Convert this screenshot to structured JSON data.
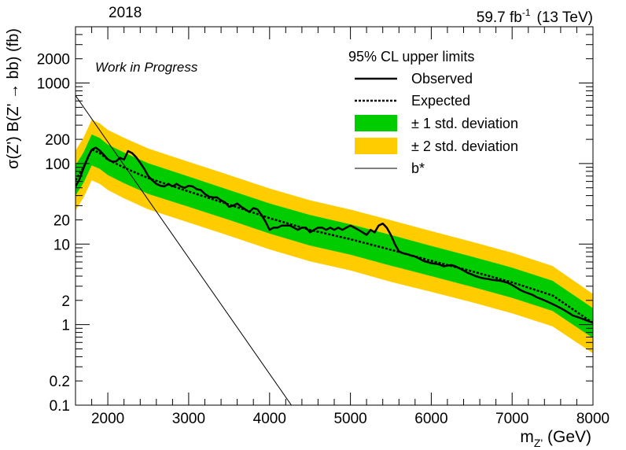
{
  "header": {
    "year": "2018",
    "lumi_value": "59.7 fb",
    "lumi_exp": "-1",
    "energy": "(13 TeV)"
  },
  "annotation": "Work in Progress",
  "chart_data": {
    "type": "line",
    "title": "",
    "xlabel_main": "m",
    "xlabel_sub": "Z'",
    "xlabel_unit": " (GeV)",
    "ylabel": "σ(Z') B(Z' → bb) (fb)",
    "xlim": [
      1600,
      8000
    ],
    "ylim": [
      0.1,
      5000
    ],
    "yscale": "log",
    "grid": false,
    "legend_placement": "top-right",
    "legend_title": "95% CL upper limits",
    "x_ticks": [
      "2000",
      "3000",
      "4000",
      "5000",
      "6000",
      "7000",
      "8000"
    ],
    "y_ticks": [
      {
        "value": 0.1,
        "label": "0.1"
      },
      {
        "value": 0.2,
        "label": "0.2"
      },
      {
        "value": 1,
        "label": "1"
      },
      {
        "value": 2,
        "label": "2"
      },
      {
        "value": 10,
        "label": "10"
      },
      {
        "value": 20,
        "label": "20"
      },
      {
        "value": 100,
        "label": "100"
      },
      {
        "value": 200,
        "label": "200"
      },
      {
        "value": 1000,
        "label": "1000"
      },
      {
        "value": 2000,
        "label": "2000"
      }
    ],
    "colors": {
      "band_2sigma": "#ffcc00",
      "band_1sigma": "#00cc00",
      "observed": "#000000",
      "expected": "#000000",
      "bstar": "#000000"
    },
    "series": [
      {
        "name": "Observed",
        "style": "solid",
        "x": [
          1600,
          1650,
          1700,
          1750,
          1800,
          1850,
          1900,
          1950,
          2000,
          2050,
          2100,
          2150,
          2200,
          2250,
          2300,
          2350,
          2400,
          2450,
          2500,
          2550,
          2600,
          2650,
          2700,
          2750,
          2800,
          2850,
          2900,
          2950,
          3000,
          3050,
          3100,
          3150,
          3200,
          3250,
          3300,
          3350,
          3400,
          3450,
          3500,
          3550,
          3600,
          3650,
          3700,
          3750,
          3800,
          3850,
          3900,
          3950,
          4000,
          4050,
          4100,
          4150,
          4200,
          4250,
          4300,
          4350,
          4400,
          4450,
          4500,
          4550,
          4600,
          4650,
          4700,
          4750,
          4800,
          4850,
          4900,
          4950,
          5000,
          5050,
          5100,
          5150,
          5200,
          5250,
          5300,
          5350,
          5400,
          5450,
          5500,
          5550,
          5600,
          5650,
          5700,
          5750,
          5800,
          5850,
          5900,
          5950,
          6000,
          6050,
          6100,
          6150,
          6200,
          6250,
          6300,
          6350,
          6400,
          6450,
          6500,
          6550,
          6600,
          6650,
          6700,
          6750,
          6800,
          6850,
          6900,
          6950,
          7000,
          7050,
          7100,
          7150,
          7200,
          7250,
          7300,
          7350,
          7400,
          7450,
          7500,
          7550,
          7600,
          7650,
          7700,
          7750,
          7800,
          7850,
          7900,
          7950,
          8000
        ],
        "y": [
          52,
          64,
          88,
          118,
          148,
          158,
          145,
          128,
          113,
          106,
          106,
          118,
          112,
          143,
          135,
          120,
          102,
          86,
          70,
          62,
          56,
          53,
          52,
          56,
          52,
          56,
          52,
          50,
          53,
          52,
          48,
          47,
          42,
          39,
          38,
          38,
          35,
          33,
          29,
          30,
          32,
          29,
          27,
          25,
          28,
          27,
          23,
          19,
          15,
          16,
          16,
          17,
          17,
          17,
          16,
          15,
          16,
          16,
          14,
          15,
          16,
          16,
          15,
          16,
          15,
          16,
          15,
          16,
          17,
          16,
          15,
          14,
          13,
          15,
          14,
          17,
          18,
          16,
          13,
          10,
          8.1,
          7.7,
          7.5,
          7.2,
          7.0,
          6.6,
          6.2,
          6.0,
          5.8,
          5.7,
          5.6,
          5.3,
          5.4,
          5.5,
          5.3,
          5.0,
          4.7,
          4.4,
          4.2,
          4.0,
          3.85,
          3.75,
          3.7,
          3.6,
          3.55,
          3.5,
          3.4,
          3.3,
          3.1,
          2.9,
          2.7,
          2.55,
          2.45,
          2.35,
          2.2,
          2.1,
          2.0,
          1.9,
          1.8,
          1.7,
          1.6,
          1.5,
          1.4,
          1.3,
          1.25,
          1.2,
          1.15,
          1.1,
          1.05
        ]
      },
      {
        "name": "Expected",
        "style": "dotted",
        "x": [
          1600,
          1700,
          1800,
          1900,
          2000,
          2200,
          2500,
          3000,
          3500,
          4000,
          4500,
          5000,
          5500,
          6000,
          6500,
          7000,
          7500,
          8000
        ],
        "y": [
          62,
          90,
          150,
          135,
          112,
          89,
          66,
          45,
          31,
          21,
          15,
          11.5,
          8.5,
          6.2,
          4.6,
          3.35,
          2.3,
          1.05
        ]
      },
      {
        "name": "± 1 std. deviation",
        "style": "band",
        "x": [
          1600,
          1700,
          1800,
          1900,
          2000,
          2200,
          2500,
          3000,
          3500,
          4000,
          4500,
          5000,
          5500,
          6000,
          6500,
          7000,
          7500,
          8000
        ],
        "low": [
          40,
          58,
          95,
          86,
          72,
          57,
          42,
          29,
          20,
          13.5,
          9.6,
          7.4,
          5.4,
          4.0,
          2.95,
          2.15,
          1.48,
          0.68
        ],
        "high": [
          95,
          138,
          230,
          208,
          172,
          137,
          101,
          69,
          47,
          32,
          23,
          17.6,
          13,
          9.5,
          7.0,
          5.1,
          3.5,
          1.6
        ]
      },
      {
        "name": "± 2 std. deviation",
        "style": "band",
        "x": [
          1600,
          1700,
          1800,
          1900,
          2000,
          2200,
          2500,
          3000,
          3500,
          4000,
          4500,
          5000,
          5500,
          6000,
          6500,
          7000,
          7500,
          8000
        ],
        "low": [
          26,
          38,
          62,
          56,
          47,
          37,
          27,
          18.5,
          12.7,
          8.6,
          6.1,
          4.7,
          3.4,
          2.55,
          1.9,
          1.38,
          0.95,
          0.44
        ],
        "high": [
          145,
          210,
          350,
          316,
          262,
          209,
          154,
          105,
          72,
          49,
          35,
          26.8,
          19.8,
          14.5,
          10.7,
          7.8,
          5.35,
          2.4
        ]
      },
      {
        "name": "b*",
        "style": "thin",
        "x": [
          1600,
          4270
        ],
        "y": [
          700,
          0.1
        ]
      }
    ]
  }
}
